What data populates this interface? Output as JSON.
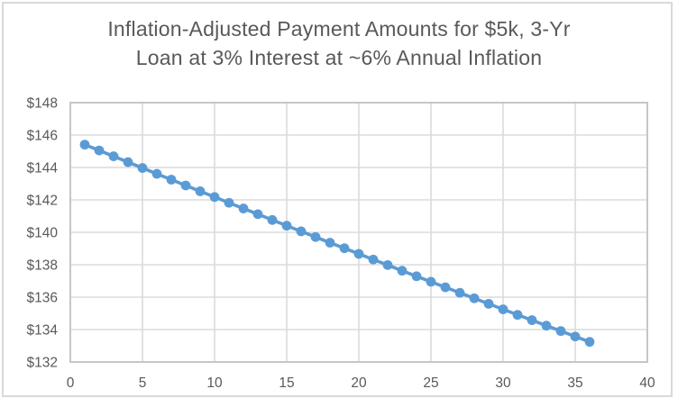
{
  "chart_data": {
    "type": "line",
    "title": "Inflation-Adjusted Payment Amounts for $5k, 3-Yr Loan at 3% Interest at ~6% Annual Inflation",
    "title_lines": [
      "Inflation-Adjusted Payment Amounts for $5k, 3-Yr",
      "Loan at 3% Interest at ~6% Annual Inflation"
    ],
    "xlabel": "",
    "ylabel": "",
    "xlim": [
      0,
      40
    ],
    "ylim": [
      132,
      148
    ],
    "grid": "both",
    "legend": "none",
    "marker": "circle",
    "x": [
      1,
      2,
      3,
      4,
      5,
      6,
      7,
      8,
      9,
      10,
      11,
      12,
      13,
      14,
      15,
      16,
      17,
      18,
      19,
      20,
      21,
      22,
      23,
      24,
      25,
      26,
      27,
      28,
      29,
      30,
      31,
      32,
      33,
      34,
      35,
      36
    ],
    "values": [
      145.41,
      145.05,
      144.69,
      144.33,
      143.97,
      143.61,
      143.25,
      142.89,
      142.53,
      142.18,
      141.82,
      141.47,
      141.12,
      140.76,
      140.41,
      140.06,
      139.71,
      139.36,
      139.02,
      138.67,
      138.32,
      137.98,
      137.63,
      137.29,
      136.95,
      136.61,
      136.27,
      135.93,
      135.59,
      135.25,
      134.91,
      134.58,
      134.24,
      133.91,
      133.57,
      133.24
    ],
    "x_tick_values": [
      0,
      5,
      10,
      15,
      20,
      25,
      30,
      35,
      40
    ],
    "x_tick_labels": [
      "0",
      "5",
      "10",
      "15",
      "20",
      "25",
      "30",
      "35",
      "40"
    ],
    "y_tick_values": [
      132,
      134,
      136,
      138,
      140,
      142,
      144,
      146,
      148
    ],
    "y_tick_labels": [
      "$132",
      "$134",
      "$136",
      "$138",
      "$140",
      "$142",
      "$144",
      "$146",
      "$148"
    ],
    "colors": {
      "series": "#5B9BD5",
      "title_text": "#595959",
      "axis_text": "#595959",
      "gridline": "#DBDBDB",
      "plot_border": "#C6C6C6",
      "frame_border": "#D9D9D9",
      "background": "#FFFFFF"
    }
  }
}
